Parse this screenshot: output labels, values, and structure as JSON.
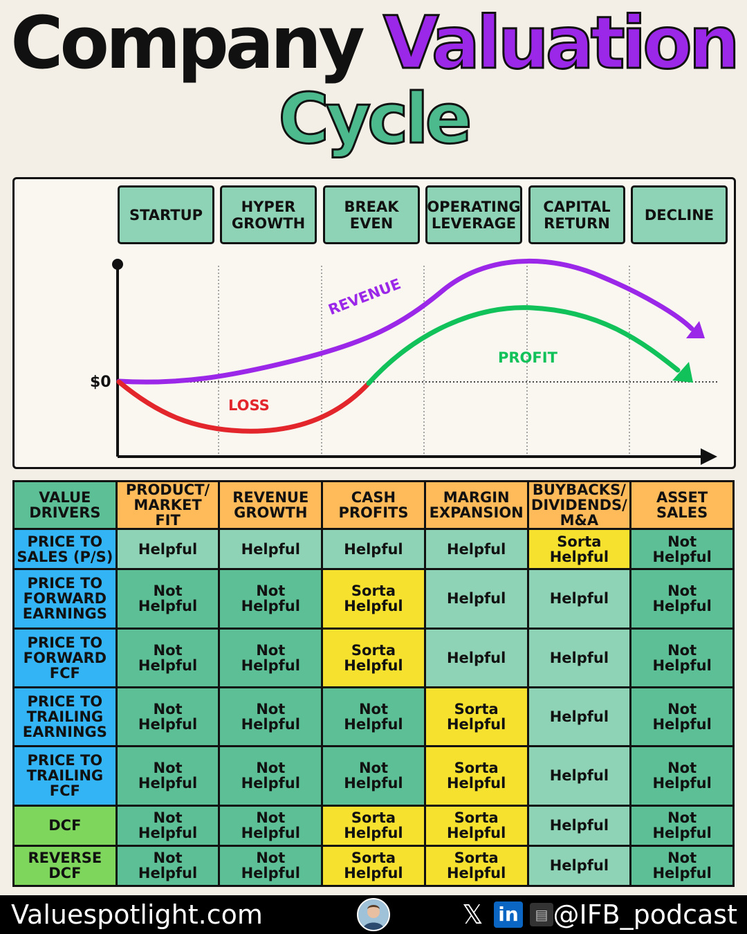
{
  "title": {
    "part1": "Company",
    "part2": "Valuation",
    "line2": "Cycle"
  },
  "chart_data": {
    "type": "line",
    "stages": [
      "STARTUP",
      "HYPER\nGROWTH",
      "BREAK\nEVEN",
      "OPERATING\nLEVERAGE",
      "CAPITAL\nRETURN",
      "DECLINE"
    ],
    "zero_label": "$0",
    "series": [
      {
        "name": "REVENUE",
        "color": "#9b27e8",
        "description_points_stage_index": [
          0,
          1,
          2,
          3,
          4,
          5.7
        ],
        "values": [
          0,
          0.02,
          0.45,
          1.6,
          2.1,
          0.7
        ]
      },
      {
        "name": "LOSS",
        "color": "#e2262b",
        "description_points_stage_index": [
          0,
          1,
          1.4,
          2,
          2.45
        ],
        "values": [
          0,
          -0.85,
          -0.9,
          -0.6,
          0
        ]
      },
      {
        "name": "PROFIT",
        "color": "#11c15a",
        "description_points_stage_index": [
          2.45,
          3,
          4,
          5.6
        ],
        "values": [
          0,
          0.7,
          1.2,
          0
        ]
      }
    ],
    "grid": "vertical dotted lines at stage boundaries",
    "zero_line": "horizontal dotted"
  },
  "table": {
    "header": [
      "VALUE\nDRIVERS",
      "PRODUCT/\nMARKET FIT",
      "REVENUE\nGROWTH",
      "CASH\nPROFITS",
      "MARGIN\nEXPANSION",
      "BUYBACKS/\nDIVIDENDS/\nM&A",
      "ASSET\nSALES"
    ],
    "rows": [
      {
        "label": "PRICE TO\nSALES (P/S)",
        "kind": "blue",
        "cells": [
          "Helpful",
          "Helpful",
          "Helpful",
          "Helpful",
          "Sorta\nHelpful",
          "Not\nHelpful"
        ]
      },
      {
        "label": "PRICE TO\nFORWARD\nEARNINGS",
        "kind": "blue",
        "cells": [
          "Not\nHelpful",
          "Not\nHelpful",
          "Sorta\nHelpful",
          "Helpful",
          "Helpful",
          "Not\nHelpful"
        ]
      },
      {
        "label": "PRICE TO\nFORWARD\nFCF",
        "kind": "blue",
        "cells": [
          "Not\nHelpful",
          "Not\nHelpful",
          "Sorta\nHelpful",
          "Helpful",
          "Helpful",
          "Not\nHelpful"
        ]
      },
      {
        "label": "PRICE TO\nTRAILING\nEARNINGS",
        "kind": "blue",
        "cells": [
          "Not\nHelpful",
          "Not\nHelpful",
          "Not\nHelpful",
          "Sorta\nHelpful",
          "Helpful",
          "Not\nHelpful"
        ]
      },
      {
        "label": "PRICE TO\nTRAILING\nFCF",
        "kind": "blue",
        "cells": [
          "Not\nHelpful",
          "Not\nHelpful",
          "Not\nHelpful",
          "Sorta\nHelpful",
          "Helpful",
          "Not\nHelpful"
        ]
      },
      {
        "label": "DCF",
        "kind": "green",
        "cells": [
          "Not\nHelpful",
          "Not\nHelpful",
          "Sorta\nHelpful",
          "Sorta\nHelpful",
          "Helpful",
          "Not\nHelpful"
        ]
      },
      {
        "label": "REVERSE\nDCF",
        "kind": "green",
        "cells": [
          "Not\nHelpful",
          "Not\nHelpful",
          "Sorta\nHelpful",
          "Sorta\nHelpful",
          "Helpful",
          "Not\nHelpful"
        ]
      }
    ]
  },
  "footer": {
    "site": "Valuespotlight.com",
    "handle": "@IFB_podcast",
    "icons": [
      "avatar",
      "x-icon",
      "linkedin-icon",
      "substack-icon"
    ]
  }
}
